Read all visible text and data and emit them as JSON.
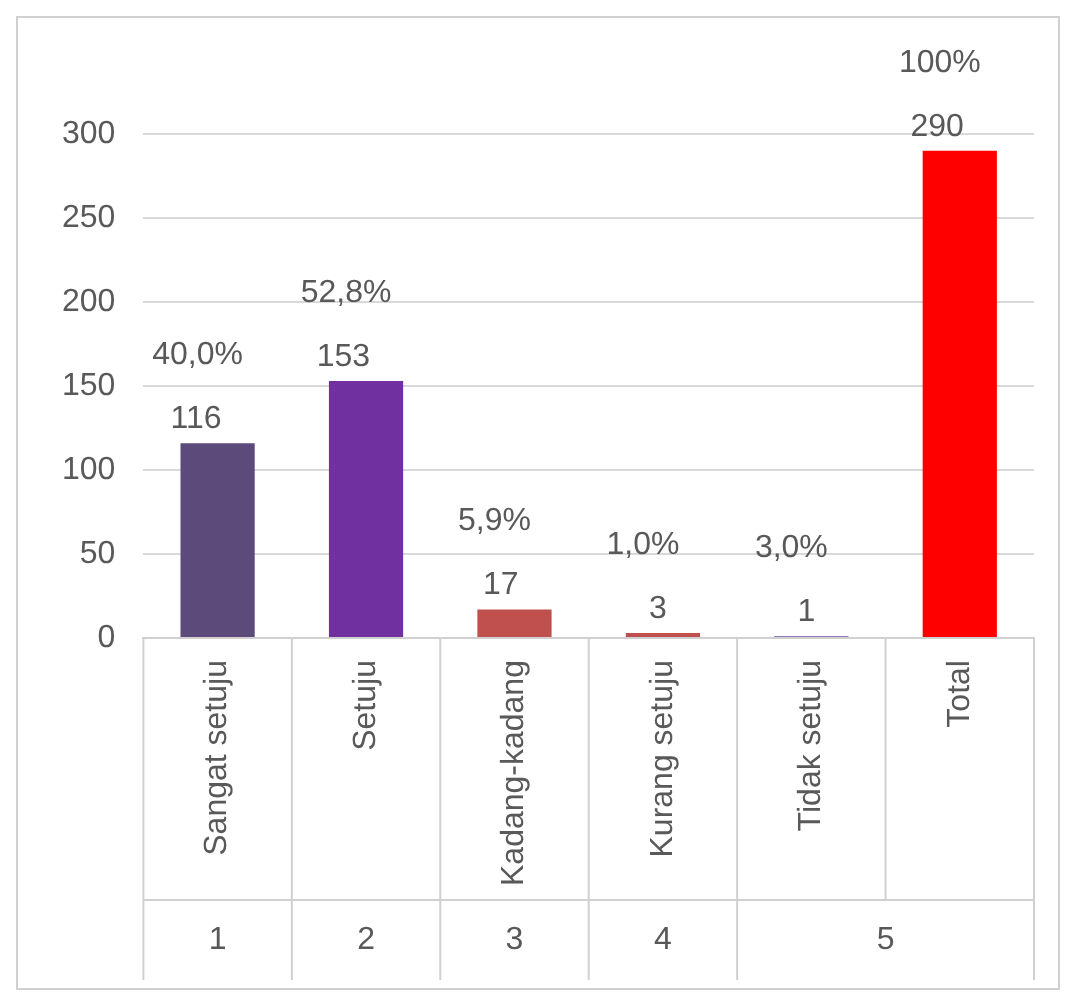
{
  "chart_data": {
    "type": "bar",
    "categories": [
      "Sangat setuju",
      "Setuju",
      "Kadang-kadang",
      "Kurang setuju",
      "Tidak setuju",
      "Total"
    ],
    "values": [
      116,
      153,
      17,
      3,
      1,
      290
    ],
    "colors": [
      "#5b4a7a",
      "#7030a0",
      "#c0504d",
      "#c0504d",
      "#6f4a9e",
      "#ff0000"
    ],
    "ylim": [
      0,
      300
    ],
    "yticks": [
      0,
      50,
      100,
      150,
      200,
      250,
      300
    ],
    "grid": "y",
    "data_labels": true,
    "annotations": [
      {
        "text": "40,0%",
        "x": "Sangat setuju",
        "y": 116
      },
      {
        "text": "52,8%",
        "x": "Setuju",
        "y": 153
      },
      {
        "text": "5,9%",
        "x": "Kadang-kadang",
        "y": 17
      },
      {
        "text": "1,0%",
        "x": "Kurang setuju",
        "y": 3
      },
      {
        "text": "3,0%",
        "x": "Tidak setuju",
        "y": 1
      },
      {
        "text": "100%",
        "x": "Total",
        "y": 290
      },
      "1",
      "2",
      "3",
      "4",
      "5"
    ]
  }
}
